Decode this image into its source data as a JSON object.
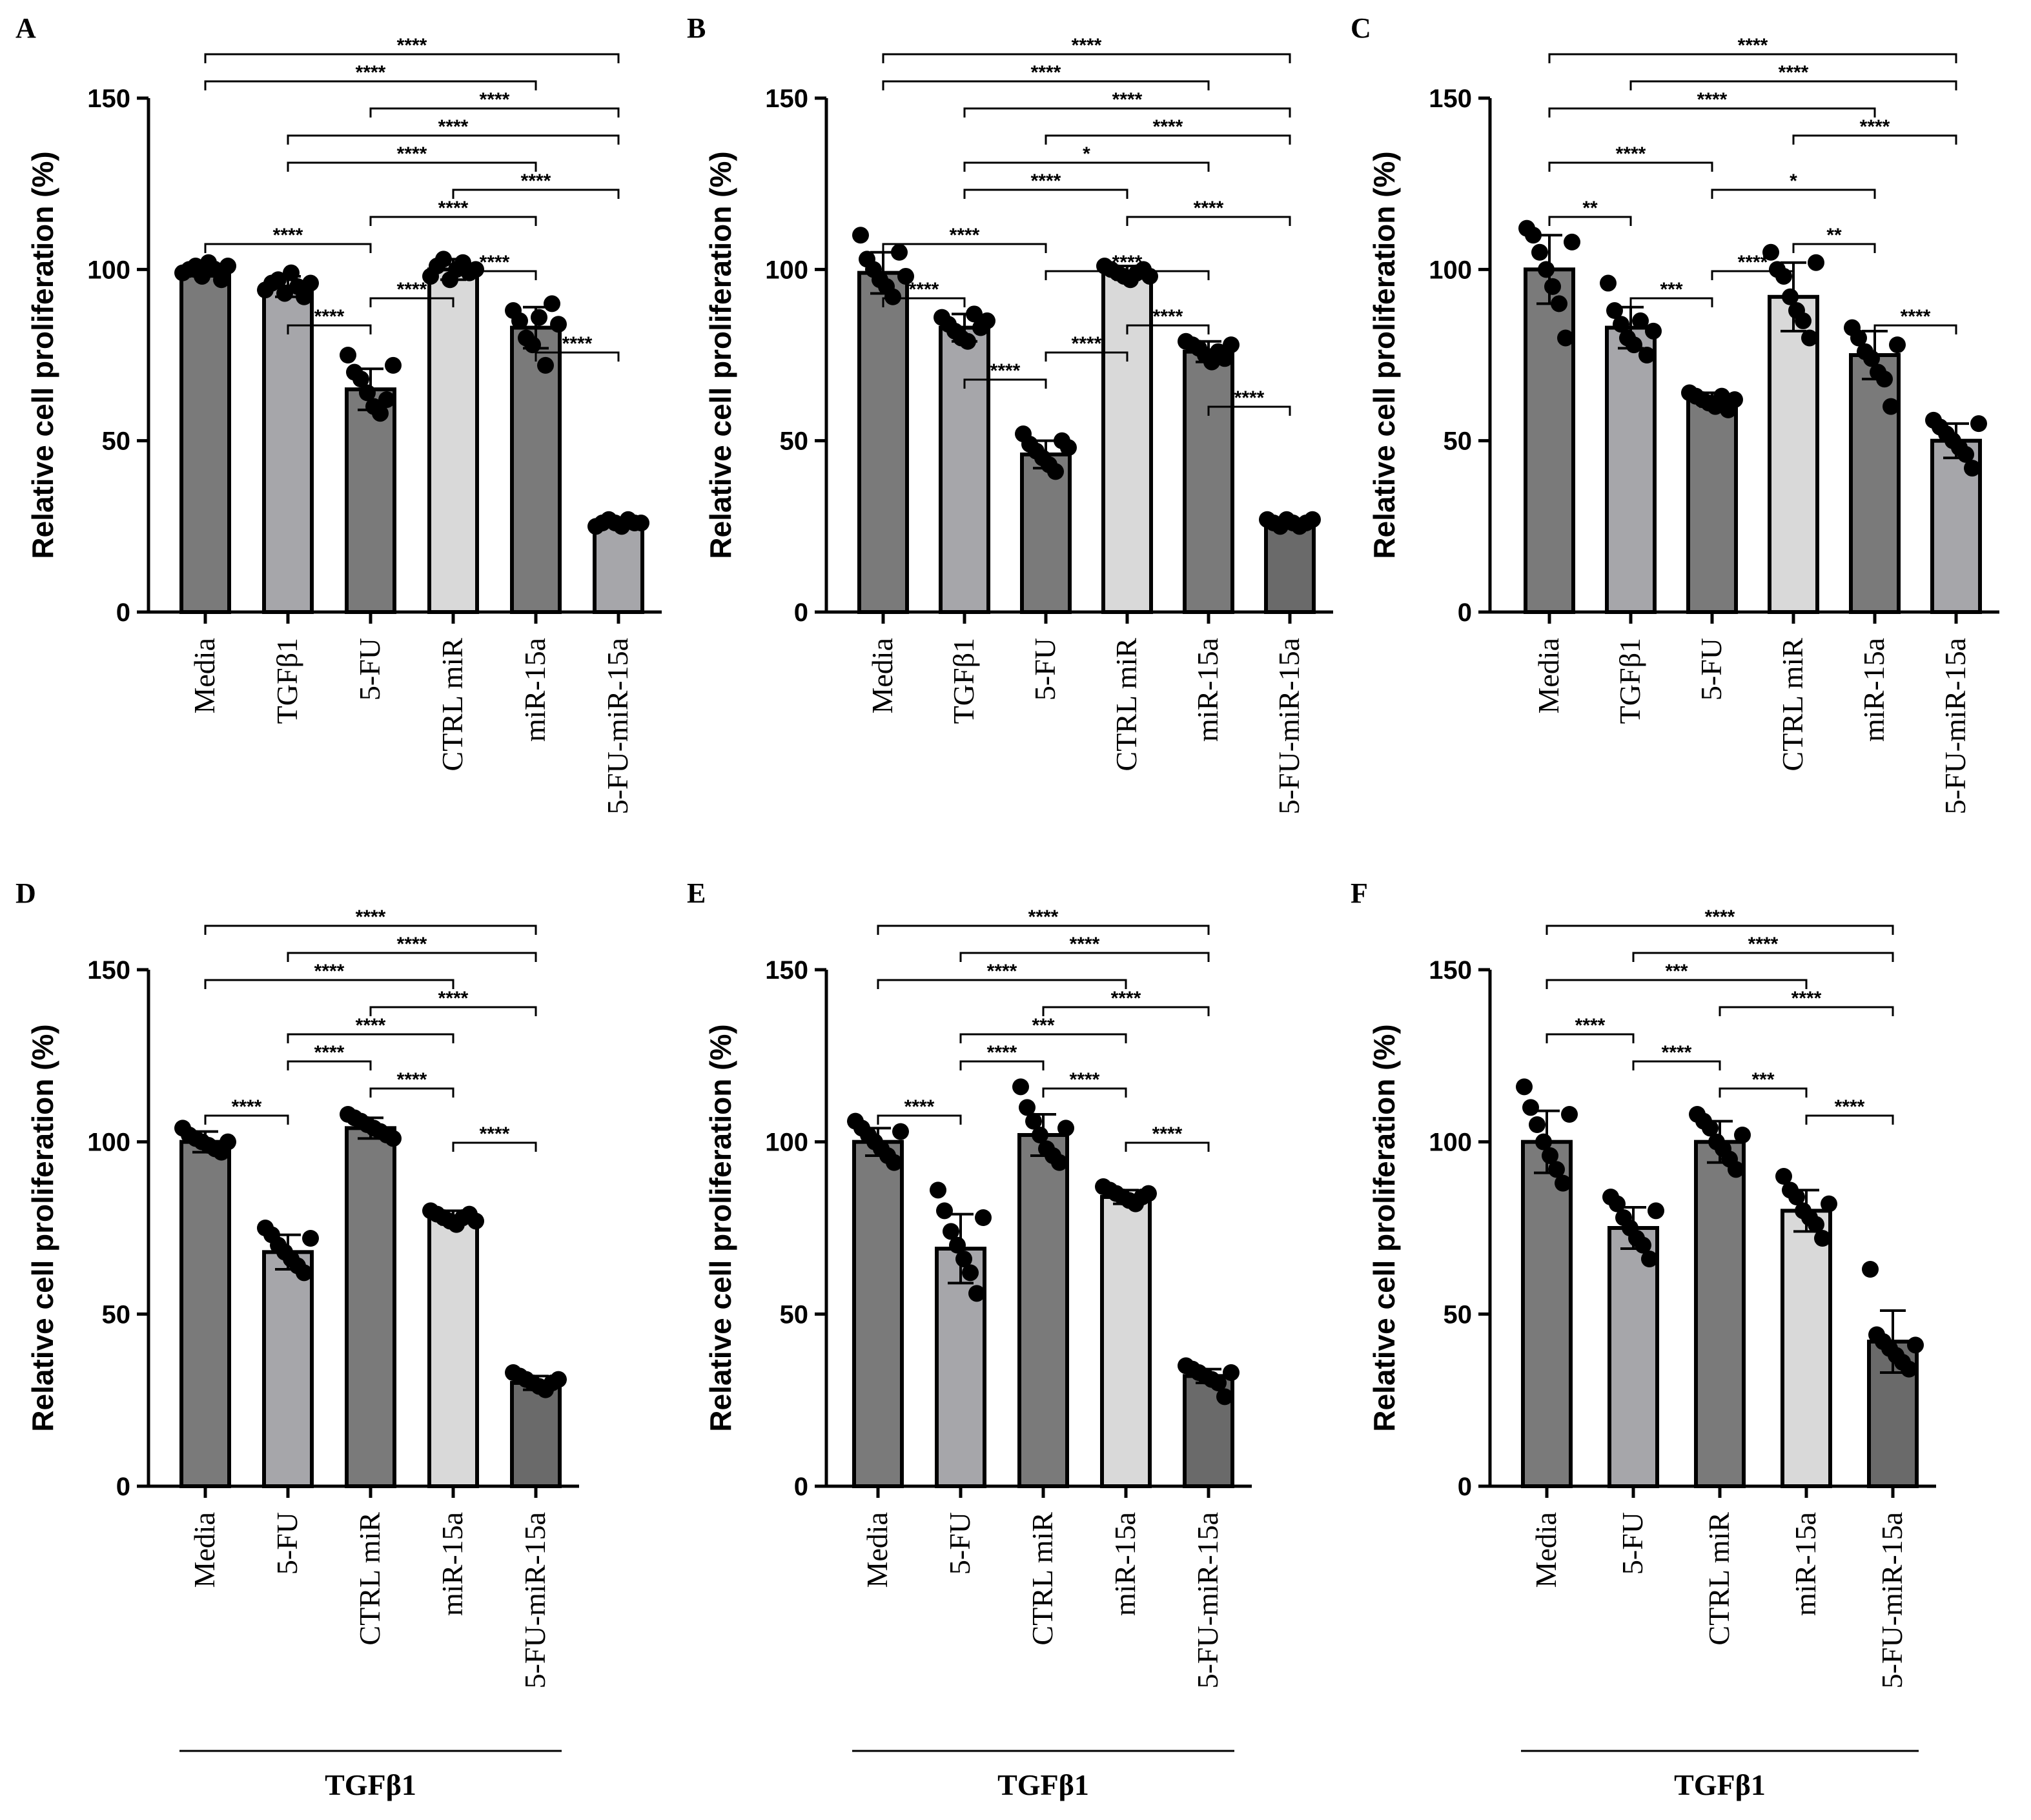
{
  "figure": {
    "colors": {
      "dark": "#7a7a7a",
      "mid": "#a6a6aa",
      "light": "#d9d9d9",
      "darker": "#6a6a6a",
      "ink": "#000000"
    }
  },
  "chart_data": [
    {
      "panel": "A",
      "type": "bar",
      "ylabel": "Relative cell proliferation (%)",
      "ylim": [
        0,
        150
      ],
      "yticks": [
        "0",
        "50",
        "100",
        "150"
      ],
      "categories": [
        "Media",
        "TGFβ1",
        "5-FU",
        "CTRL miR",
        "miR-15a",
        "5-FU-miR-15a"
      ],
      "values": [
        100,
        95,
        65,
        100,
        83,
        26
      ],
      "errors": [
        2,
        3,
        6,
        3,
        6,
        1
      ],
      "points": [
        [
          99,
          100,
          101,
          98,
          102,
          100,
          97,
          101
        ],
        [
          94,
          96,
          97,
          93,
          99,
          95,
          92,
          96
        ],
        [
          75,
          70,
          68,
          64,
          60,
          58,
          62,
          72
        ],
        [
          98,
          101,
          103,
          97,
          100,
          102,
          99,
          100
        ],
        [
          88,
          85,
          80,
          78,
          86,
          72,
          90,
          84
        ],
        [
          25,
          26,
          27,
          26,
          25,
          27,
          26,
          26
        ]
      ],
      "fills": [
        "dark",
        "mid",
        "dark",
        "light",
        "dark",
        "mid"
      ],
      "group_label": "",
      "comparisons": [
        {
          "from": 0,
          "to": 5,
          "label": "****"
        },
        {
          "from": 0,
          "to": 4,
          "label": "****"
        },
        {
          "from": 2,
          "to": 5,
          "label": "****"
        },
        {
          "from": 1,
          "to": 5,
          "label": "****"
        },
        {
          "from": 1,
          "to": 4,
          "label": "****"
        },
        {
          "from": 3,
          "to": 5,
          "label": "****"
        },
        {
          "from": 2,
          "to": 4,
          "label": "****"
        },
        {
          "from": 0,
          "to": 2,
          "label": "****"
        },
        {
          "from": 3,
          "to": 4,
          "label": "****"
        },
        {
          "from": 2,
          "to": 3,
          "label": "****"
        },
        {
          "from": 1,
          "to": 2,
          "label": "****"
        },
        {
          "from": 4,
          "to": 5,
          "label": "****"
        }
      ]
    },
    {
      "panel": "B",
      "type": "bar",
      "ylabel": "Relative cell proliferation (%)",
      "ylim": [
        0,
        150
      ],
      "yticks": [
        "0",
        "50",
        "100",
        "150"
      ],
      "categories": [
        "Media",
        "TGFβ1",
        "5-FU",
        "CTRL miR",
        "miR-15a",
        "5-FU-miR-15a"
      ],
      "values": [
        99,
        83,
        46,
        99,
        76,
        26
      ],
      "errors": [
        6,
        4,
        4,
        2,
        3,
        1
      ],
      "points": [
        [
          110,
          103,
          100,
          97,
          95,
          92,
          105,
          98
        ],
        [
          86,
          84,
          82,
          80,
          79,
          87,
          83,
          85
        ],
        [
          52,
          49,
          47,
          45,
          43,
          41,
          50,
          48
        ],
        [
          101,
          100,
          99,
          98,
          97,
          99,
          100,
          98
        ],
        [
          79,
          78,
          77,
          75,
          73,
          76,
          74,
          78
        ],
        [
          27,
          26,
          25,
          27,
          26,
          25,
          26,
          27
        ]
      ],
      "fills": [
        "dark",
        "mid",
        "dark",
        "light",
        "dark",
        "darker"
      ],
      "group_label": "",
      "comparisons": [
        {
          "from": 0,
          "to": 5,
          "label": "****"
        },
        {
          "from": 0,
          "to": 4,
          "label": "****"
        },
        {
          "from": 1,
          "to": 5,
          "label": "****"
        },
        {
          "from": 2,
          "to": 5,
          "label": "****"
        },
        {
          "from": 1,
          "to": 4,
          "label": "*"
        },
        {
          "from": 1,
          "to": 3,
          "label": "****"
        },
        {
          "from": 3,
          "to": 5,
          "label": "****"
        },
        {
          "from": 0,
          "to": 2,
          "label": "****"
        },
        {
          "from": 2,
          "to": 4,
          "label": "****"
        },
        {
          "from": 0,
          "to": 1,
          "label": "****"
        },
        {
          "from": 3,
          "to": 4,
          "label": "****"
        },
        {
          "from": 2,
          "to": 3,
          "label": "****"
        },
        {
          "from": 1,
          "to": 2,
          "label": "****"
        },
        {
          "from": 4,
          "to": 5,
          "label": "****"
        }
      ]
    },
    {
      "panel": "C",
      "type": "bar",
      "ylabel": "Relative cell proliferation (%)",
      "ylim": [
        0,
        150
      ],
      "yticks": [
        "0",
        "50",
        "100",
        "150"
      ],
      "categories": [
        "Media",
        "TGFβ1",
        "5-FU",
        "CTRL miR",
        "miR-15a",
        "5-FU-miR-15a"
      ],
      "values": [
        100,
        83,
        62,
        92,
        75,
        50
      ],
      "errors": [
        10,
        6,
        2,
        10,
        7,
        5
      ],
      "points": [
        [
          112,
          110,
          105,
          100,
          95,
          90,
          80,
          108
        ],
        [
          96,
          88,
          84,
          80,
          78,
          85,
          75,
          82
        ],
        [
          64,
          63,
          62,
          61,
          60,
          63,
          59,
          62
        ],
        [
          105,
          100,
          98,
          92,
          88,
          85,
          80,
          102
        ],
        [
          83,
          80,
          76,
          74,
          70,
          68,
          60,
          78
        ],
        [
          56,
          54,
          52,
          50,
          48,
          46,
          42,
          55
        ]
      ],
      "fills": [
        "dark",
        "mid",
        "dark",
        "light",
        "dark",
        "mid"
      ],
      "group_label": "",
      "comparisons": [
        {
          "from": 0,
          "to": 5,
          "label": "****"
        },
        {
          "from": 1,
          "to": 5,
          "label": "****"
        },
        {
          "from": 0,
          "to": 4,
          "label": "****"
        },
        {
          "from": 3,
          "to": 5,
          "label": "****"
        },
        {
          "from": 0,
          "to": 2,
          "label": "****"
        },
        {
          "from": 2,
          "to": 4,
          "label": "*"
        },
        {
          "from": 0,
          "to": 1,
          "label": "**"
        },
        {
          "from": 3,
          "to": 4,
          "label": "**"
        },
        {
          "from": 2,
          "to": 3,
          "label": "****"
        },
        {
          "from": 1,
          "to": 2,
          "label": "***"
        },
        {
          "from": 4,
          "to": 5,
          "label": "****"
        }
      ]
    },
    {
      "panel": "D",
      "type": "bar",
      "ylabel": "Relative cell proliferation (%)",
      "ylim": [
        0,
        150
      ],
      "yticks": [
        "0",
        "50",
        "100",
        "150"
      ],
      "categories": [
        "Media",
        "5-FU",
        "CTRL miR",
        "miR-15a",
        "5-FU-miR-15a"
      ],
      "values": [
        100,
        68,
        104,
        78,
        30
      ],
      "errors": [
        3,
        5,
        3,
        2,
        2
      ],
      "points": [
        [
          104,
          102,
          101,
          100,
          99,
          98,
          97,
          100
        ],
        [
          75,
          73,
          70,
          68,
          66,
          64,
          62,
          72
        ],
        [
          108,
          107,
          106,
          105,
          104,
          103,
          102,
          101
        ],
        [
          80,
          79,
          78,
          77,
          76,
          78,
          79,
          77
        ],
        [
          33,
          32,
          31,
          30,
          29,
          28,
          30,
          31
        ]
      ],
      "fills": [
        "dark",
        "mid",
        "dark",
        "light",
        "darker"
      ],
      "group_label": "TGFβ1",
      "comparisons": [
        {
          "from": 0,
          "to": 4,
          "label": "****"
        },
        {
          "from": 1,
          "to": 4,
          "label": "****"
        },
        {
          "from": 0,
          "to": 3,
          "label": "****"
        },
        {
          "from": 2,
          "to": 4,
          "label": "****"
        },
        {
          "from": 1,
          "to": 3,
          "label": "****"
        },
        {
          "from": 1,
          "to": 2,
          "label": "****"
        },
        {
          "from": 2,
          "to": 3,
          "label": "****"
        },
        {
          "from": 0,
          "to": 1,
          "label": "****"
        },
        {
          "from": 3,
          "to": 4,
          "label": "****"
        }
      ]
    },
    {
      "panel": "E",
      "type": "bar",
      "ylabel": "Relative cell proliferation (%)",
      "ylim": [
        0,
        150
      ],
      "yticks": [
        "0",
        "50",
        "100",
        "150"
      ],
      "categories": [
        "Media",
        "5-FU",
        "CTRL miR",
        "miR-15a",
        "5-FU-miR-15a"
      ],
      "values": [
        100,
        69,
        102,
        84,
        32
      ],
      "errors": [
        4,
        10,
        6,
        2,
        2
      ],
      "points": [
        [
          106,
          104,
          102,
          100,
          98,
          96,
          94,
          103
        ],
        [
          86,
          80,
          74,
          70,
          66,
          62,
          56,
          78
        ],
        [
          116,
          110,
          106,
          102,
          98,
          96,
          94,
          104
        ],
        [
          87,
          86,
          85,
          84,
          83,
          82,
          84,
          85
        ],
        [
          35,
          34,
          33,
          32,
          31,
          30,
          26,
          33
        ]
      ],
      "fills": [
        "dark",
        "mid",
        "dark",
        "light",
        "darker"
      ],
      "group_label": "TGFβ1",
      "comparisons": [
        {
          "from": 0,
          "to": 4,
          "label": "****"
        },
        {
          "from": 1,
          "to": 4,
          "label": "****"
        },
        {
          "from": 0,
          "to": 3,
          "label": "****"
        },
        {
          "from": 2,
          "to": 4,
          "label": "****"
        },
        {
          "from": 1,
          "to": 3,
          "label": "***"
        },
        {
          "from": 1,
          "to": 2,
          "label": "****"
        },
        {
          "from": 2,
          "to": 3,
          "label": "****"
        },
        {
          "from": 0,
          "to": 1,
          "label": "****"
        },
        {
          "from": 3,
          "to": 4,
          "label": "****"
        }
      ]
    },
    {
      "panel": "F",
      "type": "bar",
      "ylabel": "Relative cell proliferation (%)",
      "ylim": [
        0,
        150
      ],
      "yticks": [
        "0",
        "50",
        "100",
        "150"
      ],
      "categories": [
        "Media",
        "5-FU",
        "CTRL miR",
        "miR-15a",
        "5-FU-miR-15a"
      ],
      "values": [
        100,
        75,
        100,
        80,
        42
      ],
      "errors": [
        9,
        6,
        6,
        6,
        9
      ],
      "points": [
        [
          116,
          110,
          105,
          100,
          96,
          92,
          88,
          108
        ],
        [
          84,
          82,
          78,
          75,
          72,
          70,
          66,
          80
        ],
        [
          108,
          106,
          104,
          100,
          98,
          95,
          92,
          102
        ],
        [
          90,
          86,
          84,
          80,
          78,
          76,
          72,
          82
        ],
        [
          63,
          44,
          42,
          40,
          38,
          36,
          34,
          41
        ]
      ],
      "fills": [
        "dark",
        "mid",
        "dark",
        "light",
        "darker"
      ],
      "group_label": "TGFβ1",
      "comparisons": [
        {
          "from": 0,
          "to": 4,
          "label": "****"
        },
        {
          "from": 1,
          "to": 4,
          "label": "****"
        },
        {
          "from": 0,
          "to": 3,
          "label": "***"
        },
        {
          "from": 2,
          "to": 4,
          "label": "****"
        },
        {
          "from": 0,
          "to": 1,
          "label": "****"
        },
        {
          "from": 1,
          "to": 2,
          "label": "****"
        },
        {
          "from": 2,
          "to": 3,
          "label": "***"
        },
        {
          "from": 3,
          "to": 4,
          "label": "****"
        }
      ]
    }
  ]
}
